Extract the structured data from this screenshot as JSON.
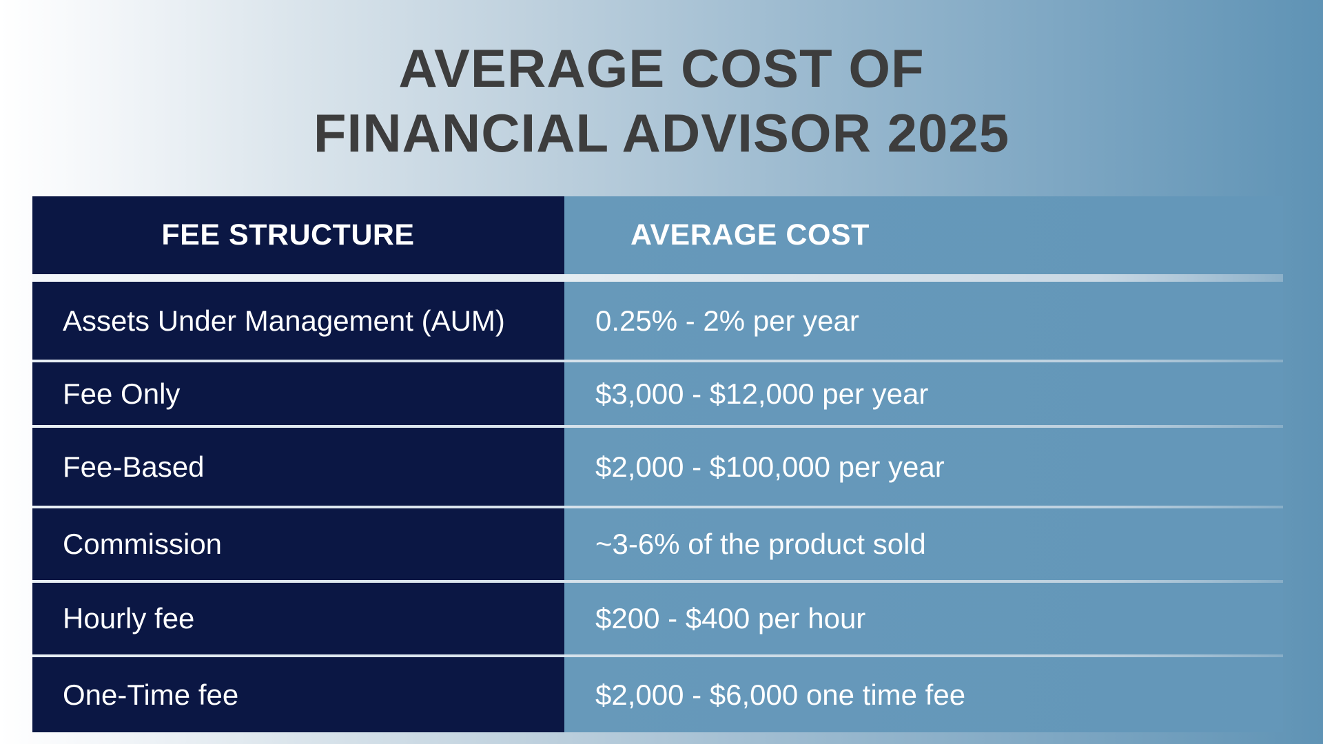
{
  "title": {
    "line1": "AVERAGE COST OF",
    "line2": "FINANCIAL ADVISOR 2025"
  },
  "table": {
    "headers": {
      "fee_structure": "FEE STRUCTURE",
      "average_cost": "AVERAGE COST"
    },
    "rows": [
      {
        "fee_structure": "Assets Under Management (AUM)",
        "average_cost": "0.25% - 2% per year"
      },
      {
        "fee_structure": "Fee Only",
        "average_cost": "$3,000 - $12,000 per year"
      },
      {
        "fee_structure": "Fee-Based",
        "average_cost": "$2,000 - $100,000 per year"
      },
      {
        "fee_structure": "Commission",
        "average_cost": "~3-6% of the product sold"
      },
      {
        "fee_structure": "Hourly fee",
        "average_cost": "$200 - $400 per hour"
      },
      {
        "fee_structure": "One-Time fee",
        "average_cost": "$2,000 - $6,000 one time fee"
      }
    ]
  },
  "colors": {
    "title_text": "#3d3d3d",
    "left_column_bg": "#0b1744",
    "right_column_bg": "#6497b9",
    "cell_text": "#ffffff"
  }
}
